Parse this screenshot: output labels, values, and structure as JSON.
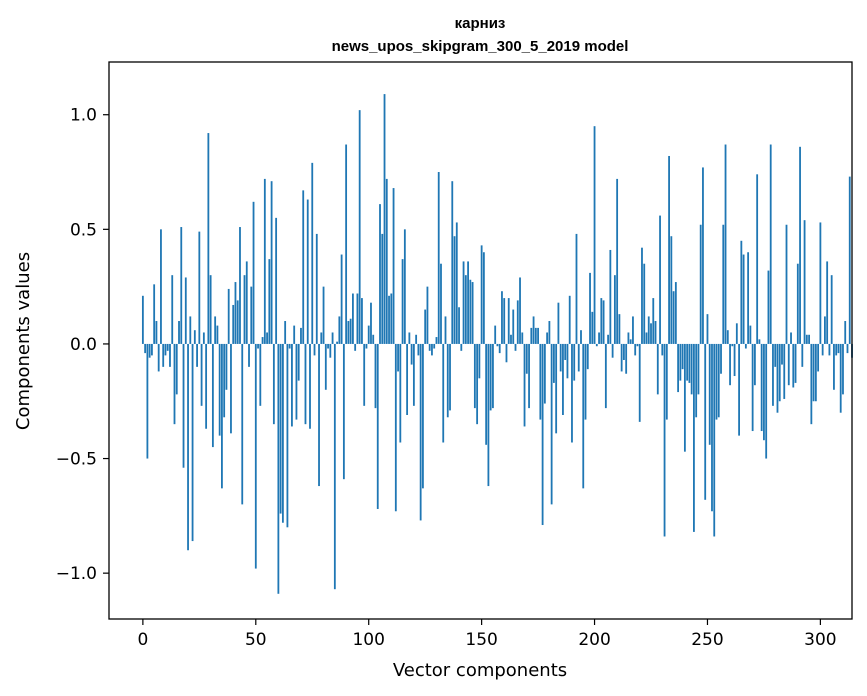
{
  "chart_data": {
    "type": "bar",
    "title": "карниз",
    "subtitle": "news_upos_skipgram_300_5_2019 model",
    "xlabel": "Vector components",
    "ylabel": "Components values",
    "xlim": [
      -15,
      314
    ],
    "ylim": [
      -1.2,
      1.23
    ],
    "xticks": [
      0,
      50,
      100,
      150,
      200,
      250,
      300
    ],
    "xtick_labels": [
      "0",
      "50",
      "100",
      "150",
      "200",
      "250",
      "300"
    ],
    "yticks": [
      -1.0,
      -0.5,
      0.0,
      0.5,
      1.0
    ],
    "ytick_labels": [
      "−1.0",
      "−0.5",
      "0.0",
      "0.5",
      "1.0"
    ],
    "grid": false,
    "bar_color": "#1f77b4",
    "values": [
      0.21,
      -0.04,
      -0.5,
      -0.06,
      -0.05,
      0.26,
      0.1,
      -0.12,
      0.5,
      -0.1,
      -0.05,
      -0.03,
      -0.1,
      0.3,
      -0.35,
      -0.22,
      0.1,
      0.51,
      -0.54,
      0.29,
      -0.9,
      0.12,
      -0.86,
      0.06,
      -0.1,
      0.49,
      -0.27,
      0.05,
      -0.37,
      0.92,
      0.3,
      -0.45,
      0.12,
      0.08,
      -0.4,
      -0.63,
      -0.32,
      -0.2,
      0.24,
      -0.39,
      0.17,
      0.27,
      0.19,
      0.51,
      -0.7,
      0.3,
      0.36,
      -0.1,
      0.25,
      0.62,
      -0.98,
      -0.02,
      -0.27,
      0.03,
      0.72,
      0.05,
      0.37,
      0.71,
      -0.35,
      0.55,
      -1.09,
      -0.74,
      -0.78,
      0.1,
      -0.8,
      -0.02,
      -0.36,
      0.08,
      -0.33,
      -0.16,
      0.07,
      0.67,
      -0.35,
      0.63,
      -0.37,
      0.79,
      -0.05,
      0.48,
      -0.62,
      0.05,
      0.25,
      -0.2,
      -0.02,
      -0.06,
      0.05,
      -1.07,
      0.01,
      0.12,
      0.39,
      -0.59,
      0.87,
      0.1,
      0.11,
      0.22,
      -0.03,
      0.22,
      1.02,
      0.2,
      -0.27,
      -0.02,
      0.08,
      0.18,
      0.04,
      -0.28,
      -0.72,
      0.61,
      0.48,
      1.09,
      0.72,
      0.21,
      0.22,
      0.68,
      -0.73,
      -0.12,
      -0.43,
      0.37,
      0.5,
      -0.31,
      0.05,
      -0.09,
      -0.27,
      0.04,
      -0.05,
      -0.77,
      -0.63,
      0.15,
      0.25,
      -0.03,
      -0.05,
      -0.02,
      0.03,
      0.75,
      0.35,
      -0.43,
      0.12,
      -0.32,
      -0.29,
      0.71,
      0.47,
      0.53,
      0.16,
      -0.03,
      0.36,
      0.3,
      0.36,
      0.28,
      0.27,
      -0.28,
      -0.35,
      -0.15,
      0.43,
      0.4,
      -0.44,
      -0.62,
      -0.29,
      -0.28,
      0.08,
      -0.01,
      -0.04,
      0.23,
      0.2,
      -0.08,
      0.2,
      0.04,
      0.15,
      -0.03,
      0.19,
      0.29,
      0.05,
      -0.36,
      -0.13,
      -0.28,
      0.07,
      0.12,
      0.07,
      0.07,
      -0.33,
      -0.79,
      -0.26,
      0.05,
      0.1,
      -0.7,
      -0.17,
      -0.39,
      0.18,
      -0.12,
      -0.31,
      -0.07,
      -0.15,
      0.21,
      -0.43,
      -0.16,
      0.48,
      -0.12,
      0.06,
      -0.63,
      -0.33,
      -0.11,
      0.31,
      0.14,
      0.95,
      -0.01,
      0.05,
      0.2,
      0.19,
      -0.28,
      0.04,
      0.41,
      -0.06,
      0.3,
      0.72,
      0.13,
      -0.12,
      -0.07,
      -0.13,
      0.05,
      0.02,
      0.12,
      -0.05,
      -0.01,
      -0.34,
      0.42,
      0.35,
      0.05,
      0.12,
      0.09,
      0.2,
      0.1,
      -0.22,
      0.56,
      -0.05,
      -0.84,
      -0.33,
      0.82,
      0.47,
      0.23,
      0.27,
      -0.21,
      -0.16,
      -0.11,
      -0.47,
      -0.16,
      -0.17,
      -0.22,
      -0.82,
      -0.32,
      -0.22,
      0.52,
      0.77,
      -0.68,
      0.13,
      -0.44,
      -0.73,
      -0.84,
      -0.33,
      -0.32,
      -0.13,
      0.52,
      0.87,
      0.06,
      -0.18,
      -0.01,
      -0.14,
      0.09,
      -0.4,
      0.45,
      0.39,
      -0.02,
      0.4,
      0.08,
      -0.38,
      -0.18,
      0.74,
      0.02,
      -0.38,
      -0.42,
      -0.5,
      0.32,
      0.87,
      -0.27,
      -0.1,
      -0.3,
      -0.25,
      -0.09,
      -0.24,
      0.52,
      -0.18,
      0.05,
      -0.19,
      -0.17,
      0.35,
      0.86,
      -0.1,
      0.54,
      0.04,
      0.04,
      -0.35,
      -0.25,
      -0.25,
      -0.12,
      0.53,
      -0.05,
      0.12,
      0.36,
      -0.05,
      0.3,
      -0.2,
      -0.05,
      -0.04,
      -0.3,
      -0.22,
      0.1,
      -0.04,
      0.73,
      -0.06
    ]
  }
}
